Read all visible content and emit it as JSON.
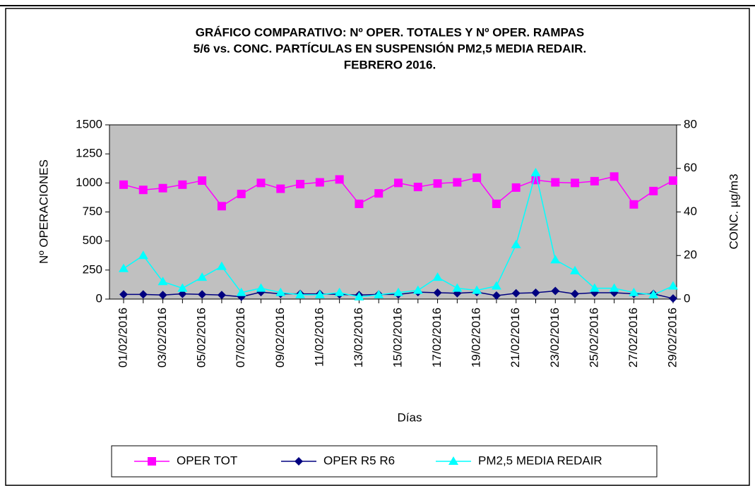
{
  "chart_data": {
    "type": "line",
    "title": [
      "GRÁFICO COMPARATIVO:  Nº OPER. TOTALES Y Nº OPER. RAMPAS",
      "5/6 vs. CONC. PARTÍCULAS  EN SUSPENSIÓN PM2,5 MEDIA REDAIR.",
      "FEBRERO 2016."
    ],
    "x_label": "Días",
    "y_label": "Nº OPERACIONES",
    "y2_label": "CONC.  µg/m3",
    "categories": [
      "01/02/2016",
      null,
      "03/02/2016",
      null,
      "05/02/2016",
      null,
      "07/02/2016",
      null,
      "09/02/2016",
      null,
      "11/02/2016",
      null,
      "13/02/2016",
      null,
      "15/02/2016",
      null,
      "17/02/2016",
      null,
      "19/02/2016",
      null,
      "21/02/2016",
      null,
      "23/02/2016",
      null,
      "25/02/2016",
      null,
      "27/02/2016",
      null,
      "29/02/2016"
    ],
    "series": [
      {
        "name": "OPER TOT",
        "color": "#ff00ff",
        "marker": "square",
        "values": [
          985,
          940,
          955,
          985,
          1020,
          800,
          905,
          1000,
          950,
          990,
          1005,
          1030,
          820,
          910,
          1000,
          965,
          995,
          1005,
          1045,
          820,
          960,
          1025,
          1005,
          1000,
          1015,
          1055,
          815,
          930,
          1020
        ]
      },
      {
        "name": "OPER R5 R6",
        "color": "#000080",
        "marker": "diamond",
        "values": [
          40,
          40,
          35,
          45,
          40,
          35,
          20,
          60,
          45,
          45,
          45,
          40,
          35,
          40,
          40,
          60,
          55,
          50,
          60,
          30,
          50,
          55,
          70,
          45,
          55,
          55,
          45,
          45,
          5
        ]
      },
      {
        "name": "PM2,5 MEDIA REDAIR",
        "color": "#00ffff",
        "marker": "triangle",
        "axis": "y2",
        "values": [
          14,
          20,
          8,
          5,
          10,
          15,
          3,
          5,
          3,
          2,
          2,
          3,
          1,
          2,
          3,
          4,
          10,
          5,
          4,
          6,
          25,
          58,
          18,
          13,
          5,
          5,
          3,
          2,
          6
        ]
      }
    ],
    "ylim": [
      0,
      1500
    ],
    "yticks": [
      0,
      250,
      500,
      750,
      1000,
      1250,
      1500
    ],
    "y2lim": [
      0,
      80
    ],
    "y2ticks": [
      0,
      20,
      40,
      60,
      80
    ],
    "plot_background": "#c0c0c0",
    "legend": "bottom"
  }
}
